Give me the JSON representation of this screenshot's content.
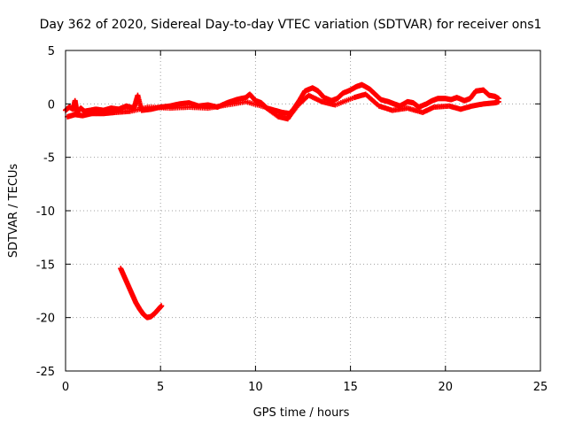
{
  "chart_data": {
    "type": "scatter",
    "title": "Day 362 of 2020, Sidereal Day-to-day VTEC variation (SDTVAR) for receiver ons1",
    "xlabel": "GPS time / hours",
    "ylabel": "SDTVAR / TECUs",
    "xlim": [
      0,
      25
    ],
    "ylim": [
      -25,
      5
    ],
    "xticks": [
      0,
      5,
      10,
      15,
      20,
      25
    ],
    "yticks": [
      -25,
      -20,
      -15,
      -10,
      -5,
      0,
      5
    ],
    "grid": true,
    "marker_color": "#ff0000",
    "series": [
      {
        "name": "main-band",
        "points": [
          [
            0.0,
            -0.6
          ],
          [
            0.2,
            -0.3
          ],
          [
            0.4,
            -0.5
          ],
          [
            0.5,
            0.3
          ],
          [
            0.6,
            -0.8
          ],
          [
            0.8,
            -0.4
          ],
          [
            1.0,
            -0.7
          ],
          [
            1.3,
            -0.6
          ],
          [
            1.6,
            -0.5
          ],
          [
            2.0,
            -0.6
          ],
          [
            2.4,
            -0.4
          ],
          [
            2.8,
            -0.5
          ],
          [
            3.2,
            -0.2
          ],
          [
            3.6,
            -0.4
          ],
          [
            3.8,
            0.8
          ],
          [
            4.0,
            -0.6
          ],
          [
            4.5,
            -0.5
          ],
          [
            5.0,
            -0.3
          ],
          [
            5.5,
            -0.2
          ],
          [
            6.0,
            0.0
          ],
          [
            6.5,
            0.1
          ],
          [
            7.0,
            -0.2
          ],
          [
            7.5,
            -0.1
          ],
          [
            8.0,
            -0.3
          ],
          [
            8.5,
            0.1
          ],
          [
            9.0,
            0.4
          ],
          [
            9.5,
            0.6
          ],
          [
            9.7,
            0.9
          ],
          [
            10.0,
            0.3
          ],
          [
            10.3,
            0.1
          ],
          [
            10.6,
            -0.4
          ],
          [
            11.0,
            -0.6
          ],
          [
            11.4,
            -0.8
          ],
          [
            11.8,
            -0.9
          ],
          [
            12.0,
            -0.5
          ],
          [
            12.3,
            0.3
          ],
          [
            12.6,
            1.2
          ],
          [
            13.0,
            1.5
          ],
          [
            13.3,
            1.2
          ],
          [
            13.6,
            0.6
          ],
          [
            14.0,
            0.3
          ],
          [
            14.3,
            0.5
          ],
          [
            14.6,
            1.0
          ],
          [
            15.0,
            1.3
          ],
          [
            15.3,
            1.6
          ],
          [
            15.6,
            1.8
          ],
          [
            16.0,
            1.4
          ],
          [
            16.3,
            0.9
          ],
          [
            16.6,
            0.4
          ],
          [
            17.0,
            0.2
          ],
          [
            17.3,
            0.0
          ],
          [
            17.6,
            -0.2
          ],
          [
            18.0,
            0.2
          ],
          [
            18.3,
            0.1
          ],
          [
            18.6,
            -0.3
          ],
          [
            19.0,
            0.0
          ],
          [
            19.3,
            0.3
          ],
          [
            19.6,
            0.5
          ],
          [
            20.0,
            0.5
          ],
          [
            20.3,
            0.4
          ],
          [
            20.6,
            0.6
          ],
          [
            21.0,
            0.3
          ],
          [
            21.3,
            0.5
          ],
          [
            21.6,
            1.2
          ],
          [
            22.0,
            1.3
          ],
          [
            22.3,
            0.8
          ],
          [
            22.6,
            0.7
          ],
          [
            22.8,
            0.5
          ]
        ]
      },
      {
        "name": "main-band-lower",
        "points": [
          [
            0.1,
            -1.2
          ],
          [
            0.5,
            -1.0
          ],
          [
            0.9,
            -1.1
          ],
          [
            1.4,
            -0.9
          ],
          [
            2.0,
            -0.9
          ],
          [
            2.6,
            -0.8
          ],
          [
            3.4,
            -0.7
          ],
          [
            4.4,
            -0.3
          ],
          [
            5.5,
            -0.4
          ],
          [
            6.5,
            -0.3
          ],
          [
            7.5,
            -0.4
          ],
          [
            8.5,
            -0.1
          ],
          [
            9.5,
            0.2
          ],
          [
            10.5,
            -0.3
          ],
          [
            11.2,
            -1.2
          ],
          [
            11.7,
            -1.4
          ],
          [
            12.2,
            -0.2
          ],
          [
            12.8,
            0.8
          ],
          [
            13.5,
            0.2
          ],
          [
            14.2,
            -0.1
          ],
          [
            15.2,
            0.6
          ],
          [
            15.8,
            0.9
          ],
          [
            16.5,
            -0.2
          ],
          [
            17.2,
            -0.6
          ],
          [
            18.0,
            -0.4
          ],
          [
            18.8,
            -0.8
          ],
          [
            19.4,
            -0.3
          ],
          [
            20.2,
            -0.2
          ],
          [
            20.8,
            -0.5
          ],
          [
            21.4,
            -0.2
          ],
          [
            22.0,
            0.0
          ],
          [
            22.6,
            0.1
          ],
          [
            22.8,
            0.2
          ]
        ]
      },
      {
        "name": "outlier-arc",
        "points": [
          [
            2.9,
            -15.4
          ],
          [
            3.1,
            -16.2
          ],
          [
            3.3,
            -17.0
          ],
          [
            3.5,
            -17.8
          ],
          [
            3.7,
            -18.6
          ],
          [
            3.9,
            -19.2
          ],
          [
            4.1,
            -19.7
          ],
          [
            4.3,
            -20.0
          ],
          [
            4.5,
            -19.9
          ],
          [
            4.7,
            -19.6
          ],
          [
            4.9,
            -19.2
          ],
          [
            5.05,
            -18.9
          ]
        ]
      }
    ]
  }
}
